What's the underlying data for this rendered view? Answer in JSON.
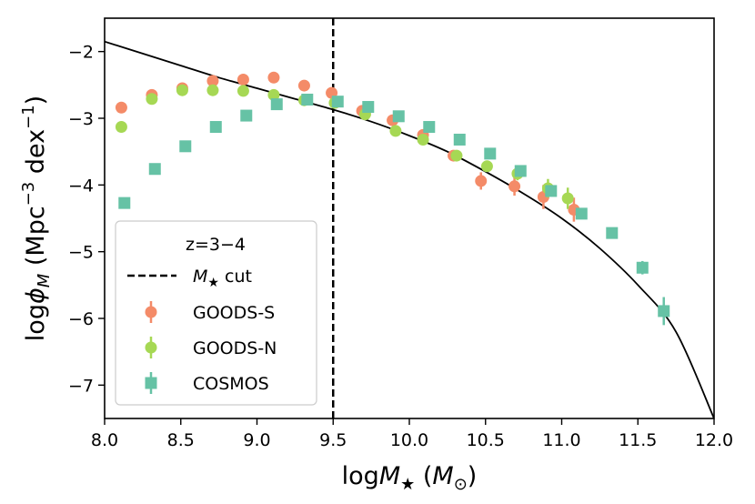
{
  "chart_data": {
    "type": "scatter",
    "xlabel": "logM★ (M⊙)",
    "xlabel_parts": {
      "prefix": "log",
      "symbol": "M",
      "sub": "★",
      "paren_open": " (",
      "unit": "M",
      "unit_sub": "⊙",
      "paren_close": ")"
    },
    "ylabel": "logϕM (Mpc−3 dex−1)",
    "ylabel_parts": {
      "prefix": "log",
      "symbol": "ϕ",
      "sub": "M",
      "paren_open": " (Mpc",
      "exp1": "−3",
      "mid": " dex",
      "exp2": "−1",
      "paren_close": ")"
    },
    "xlim": [
      8.0,
      12.0
    ],
    "ylim": [
      -7.5,
      -1.5
    ],
    "xticks": [
      "8.0",
      "8.5",
      "9.0",
      "9.5",
      "10.0",
      "10.5",
      "11.0",
      "11.5",
      "12.0"
    ],
    "xtick_values": [
      8.0,
      8.5,
      9.0,
      9.5,
      10.0,
      10.5,
      11.0,
      11.5,
      12.0
    ],
    "yticks": [
      "−2",
      "−3",
      "−4",
      "−5",
      "−6",
      "−7"
    ],
    "ytick_values": [
      -2,
      -3,
      -4,
      -5,
      -6,
      -7
    ],
    "legend": {
      "title": "z=3−4",
      "location": "lower-left",
      "entries": [
        "M★ cut",
        "GOODS-S",
        "GOODS-N",
        "COSMOS"
      ],
      "cut_label_parts": {
        "symbol": "M",
        "sub": "★",
        "rest": " cut"
      }
    },
    "mass_cut": {
      "x": 9.5,
      "label": "M★ cut"
    },
    "fit_curve": {
      "description": "Schechter fit",
      "x": [
        8.0,
        8.25,
        8.5,
        8.75,
        9.0,
        9.25,
        9.5,
        9.75,
        10.0,
        10.25,
        10.5,
        10.75,
        11.0,
        11.25,
        11.5,
        11.75,
        12.0
      ],
      "y": [
        -1.85,
        -2.03,
        -2.21,
        -2.39,
        -2.55,
        -2.71,
        -2.87,
        -3.05,
        -3.26,
        -3.5,
        -3.8,
        -4.13,
        -4.5,
        -4.95,
        -5.5,
        -6.2,
        -7.5
      ]
    },
    "series": [
      {
        "name": "GOODS-S",
        "marker": "circle",
        "color": "#f48b68",
        "points": [
          {
            "x": 8.11,
            "y": -2.84,
            "err": 0.04
          },
          {
            "x": 8.31,
            "y": -2.65,
            "err": 0.04
          },
          {
            "x": 8.51,
            "y": -2.55,
            "err": 0.04
          },
          {
            "x": 8.71,
            "y": -2.44,
            "err": 0.04
          },
          {
            "x": 8.91,
            "y": -2.42,
            "err": 0.04
          },
          {
            "x": 9.11,
            "y": -2.39,
            "err": 0.04
          },
          {
            "x": 9.31,
            "y": -2.51,
            "err": 0.04
          },
          {
            "x": 9.49,
            "y": -2.62,
            "err": 0.04
          },
          {
            "x": 9.69,
            "y": -2.89,
            "err": 0.05
          },
          {
            "x": 9.89,
            "y": -3.03,
            "err": 0.05
          },
          {
            "x": 10.09,
            "y": -3.25,
            "err": 0.06
          },
          {
            "x": 10.29,
            "y": -3.56,
            "err": 0.07
          },
          {
            "x": 10.47,
            "y": -3.94,
            "err": 0.13
          },
          {
            "x": 10.69,
            "y": -4.02,
            "err": 0.14
          },
          {
            "x": 10.88,
            "y": -4.18,
            "err": 0.18
          },
          {
            "x": 11.08,
            "y": -4.37,
            "err": 0.18
          }
        ]
      },
      {
        "name": "GOODS-N",
        "marker": "circle",
        "color": "#a6d854",
        "points": [
          {
            "x": 8.11,
            "y": -3.13,
            "err": 0.04
          },
          {
            "x": 8.31,
            "y": -2.71,
            "err": 0.04
          },
          {
            "x": 8.51,
            "y": -2.58,
            "err": 0.04
          },
          {
            "x": 8.71,
            "y": -2.58,
            "err": 0.04
          },
          {
            "x": 8.91,
            "y": -2.59,
            "err": 0.04
          },
          {
            "x": 9.11,
            "y": -2.65,
            "err": 0.04
          },
          {
            "x": 9.31,
            "y": -2.73,
            "err": 0.04
          },
          {
            "x": 9.51,
            "y": -2.77,
            "err": 0.04
          },
          {
            "x": 9.71,
            "y": -2.94,
            "err": 0.05
          },
          {
            "x": 9.91,
            "y": -3.19,
            "err": 0.05
          },
          {
            "x": 10.09,
            "y": -3.32,
            "err": 0.06
          },
          {
            "x": 10.31,
            "y": -3.56,
            "err": 0.06
          },
          {
            "x": 10.51,
            "y": -3.72,
            "err": 0.08
          },
          {
            "x": 10.71,
            "y": -3.83,
            "err": 0.1
          },
          {
            "x": 10.91,
            "y": -4.05,
            "err": 0.14
          },
          {
            "x": 11.04,
            "y": -4.2,
            "err": 0.16
          }
        ]
      },
      {
        "name": "COSMOS",
        "marker": "square",
        "color": "#66c2a5",
        "points": [
          {
            "x": 8.13,
            "y": -4.27,
            "err": 0.04
          },
          {
            "x": 8.33,
            "y": -3.76,
            "err": 0.04
          },
          {
            "x": 8.53,
            "y": -3.42,
            "err": 0.03
          },
          {
            "x": 8.73,
            "y": -3.13,
            "err": 0.03
          },
          {
            "x": 8.93,
            "y": -2.96,
            "err": 0.03
          },
          {
            "x": 9.13,
            "y": -2.79,
            "err": 0.03
          },
          {
            "x": 9.33,
            "y": -2.72,
            "err": 0.03
          },
          {
            "x": 9.53,
            "y": -2.75,
            "err": 0.03
          },
          {
            "x": 9.73,
            "y": -2.83,
            "err": 0.03
          },
          {
            "x": 9.93,
            "y": -2.97,
            "err": 0.03
          },
          {
            "x": 10.13,
            "y": -3.13,
            "err": 0.03
          },
          {
            "x": 10.33,
            "y": -3.32,
            "err": 0.03
          },
          {
            "x": 10.53,
            "y": -3.53,
            "err": 0.03
          },
          {
            "x": 10.73,
            "y": -3.79,
            "err": 0.04
          },
          {
            "x": 10.93,
            "y": -4.09,
            "err": 0.05
          },
          {
            "x": 11.13,
            "y": -4.43,
            "err": 0.06
          },
          {
            "x": 11.33,
            "y": -4.72,
            "err": 0.07
          },
          {
            "x": 11.53,
            "y": -5.24,
            "err": 0.1
          },
          {
            "x": 11.67,
            "y": -5.89,
            "err": 0.21
          }
        ]
      }
    ]
  }
}
